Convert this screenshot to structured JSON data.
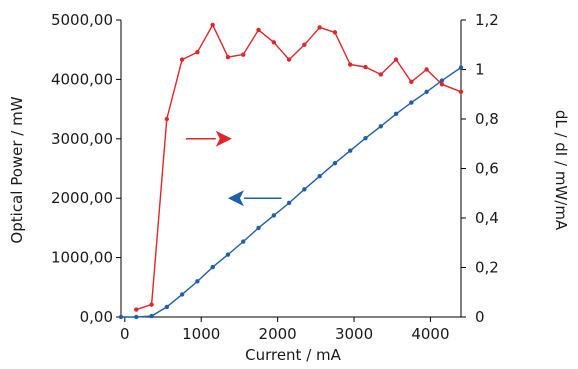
{
  "chart_data": {
    "type": "line",
    "xlabel": "Current / mA",
    "ylabel_left": "Optical Power / mW",
    "ylabel_right": "dL / dI / mW/mA",
    "xlim": [
      -50,
      4400
    ],
    "ylim_left": [
      0,
      5000
    ],
    "ylim_right": [
      0,
      1.2
    ],
    "x_ticks": [
      {
        "v": 0,
        "label": "0"
      },
      {
        "v": 1000,
        "label": "1000"
      },
      {
        "v": 2000,
        "label": "2000"
      },
      {
        "v": 3000,
        "label": "3000"
      },
      {
        "v": 4000,
        "label": "4000"
      }
    ],
    "y_left_ticks": [
      {
        "v": 0,
        "label": "0,00"
      },
      {
        "v": 1000,
        "label": "1000,00"
      },
      {
        "v": 2000,
        "label": "2000,00"
      },
      {
        "v": 3000,
        "label": "3000,00"
      },
      {
        "v": 4000,
        "label": "4000,00"
      },
      {
        "v": 5000,
        "label": "5000,00"
      }
    ],
    "y_right_ticks": [
      {
        "v": 0,
        "label": "0"
      },
      {
        "v": 0.2,
        "label": "0,2"
      },
      {
        "v": 0.4,
        "label": "0,4"
      },
      {
        "v": 0.6,
        "label": "0,6"
      },
      {
        "v": 0.8,
        "label": "0,8"
      },
      {
        "v": 1.0,
        "label": "1"
      },
      {
        "v": 1.2,
        "label": "1,2"
      }
    ],
    "grid": false,
    "series": [
      {
        "axis": "left",
        "color": "#1f5fa8",
        "x": [
          -50,
          150,
          350,
          550,
          750,
          950,
          1150,
          1350,
          1550,
          1750,
          1950,
          2150,
          2350,
          2550,
          2750,
          2950,
          3150,
          3350,
          3550,
          3750,
          3950,
          4150,
          4400
        ],
        "y": [
          0,
          0,
          15,
          170,
          380,
          600,
          840,
          1050,
          1270,
          1500,
          1710,
          1920,
          2150,
          2370,
          2590,
          2800,
          3010,
          3210,
          3420,
          3610,
          3790,
          3980,
          4200
        ]
      },
      {
        "axis": "right",
        "color": "#e0262a",
        "x": [
          150,
          350,
          550,
          750,
          950,
          1150,
          1350,
          1550,
          1750,
          1950,
          2150,
          2350,
          2550,
          2750,
          2950,
          3150,
          3350,
          3550,
          3750,
          3950,
          4150,
          4400
        ],
        "y": [
          0.03,
          0.05,
          0.8,
          1.04,
          1.07,
          1.18,
          1.05,
          1.06,
          1.16,
          1.11,
          1.04,
          1.1,
          1.17,
          1.15,
          1.02,
          1.01,
          0.98,
          1.04,
          0.95,
          1.0,
          0.94,
          0.91
        ]
      }
    ],
    "arrows": [
      {
        "direction": "right",
        "color": "#e0262a",
        "x_from": 800,
        "x_to": 1400,
        "y_left": 3000
      },
      {
        "direction": "left",
        "color": "#1f5fa8",
        "x_from": 2050,
        "x_to": 1350,
        "y_left": 2000
      }
    ]
  }
}
